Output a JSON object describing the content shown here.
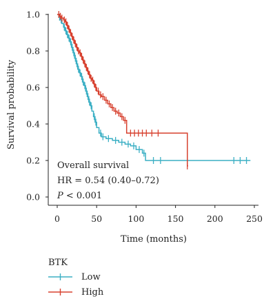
{
  "chart_data": {
    "type": "line",
    "subtype": "kaplan-meier",
    "title": "",
    "xlabel": "Time (months)",
    "ylabel": "Survival probability",
    "xlim": [
      0,
      250
    ],
    "ylim": [
      0,
      1.0
    ],
    "x_ticks": [
      "0",
      "50",
      "100",
      "150",
      "200",
      "250"
    ],
    "y_ticks": [
      "0.0",
      "0.2",
      "0.4",
      "0.6",
      "0.8",
      "1.0"
    ],
    "grid": false,
    "legend": {
      "title": "BTK",
      "position": "bottom-left"
    },
    "annotations": {
      "line1": "Overall survival",
      "line2": "HR = 0.54 (0.40–0.72)",
      "line3_p": "P",
      "line3_rest": " < 0.001"
    },
    "series": [
      {
        "name": "Low",
        "color": "#3aafc4",
        "steps": [
          [
            0,
            1.0
          ],
          [
            2,
            0.985
          ],
          [
            4,
            0.97
          ],
          [
            6,
            0.95
          ],
          [
            8,
            0.93
          ],
          [
            10,
            0.91
          ],
          [
            12,
            0.89
          ],
          [
            14,
            0.87
          ],
          [
            16,
            0.85
          ],
          [
            18,
            0.82
          ],
          [
            20,
            0.79
          ],
          [
            22,
            0.76
          ],
          [
            24,
            0.73
          ],
          [
            26,
            0.7
          ],
          [
            28,
            0.68
          ],
          [
            30,
            0.66
          ],
          [
            32,
            0.63
          ],
          [
            34,
            0.61
          ],
          [
            36,
            0.58
          ],
          [
            38,
            0.55
          ],
          [
            40,
            0.52
          ],
          [
            42,
            0.5
          ],
          [
            44,
            0.47
          ],
          [
            46,
            0.44
          ],
          [
            48,
            0.41
          ],
          [
            50,
            0.38
          ],
          [
            53,
            0.35
          ],
          [
            56,
            0.33
          ],
          [
            62,
            0.32
          ],
          [
            70,
            0.31
          ],
          [
            78,
            0.3
          ],
          [
            86,
            0.29
          ],
          [
            93,
            0.28
          ],
          [
            100,
            0.26
          ],
          [
            108,
            0.24
          ],
          [
            112,
            0.2
          ],
          [
            245,
            0.2
          ]
        ],
        "censors": [
          [
            3,
            0.985
          ],
          [
            5,
            0.97
          ],
          [
            9,
            0.93
          ],
          [
            11,
            0.91
          ],
          [
            13,
            0.89
          ],
          [
            15,
            0.87
          ],
          [
            17,
            0.85
          ],
          [
            19,
            0.82
          ],
          [
            21,
            0.79
          ],
          [
            23,
            0.76
          ],
          [
            25,
            0.73
          ],
          [
            27,
            0.7
          ],
          [
            29,
            0.68
          ],
          [
            31,
            0.66
          ],
          [
            33,
            0.63
          ],
          [
            35,
            0.61
          ],
          [
            37,
            0.58
          ],
          [
            39,
            0.55
          ],
          [
            41,
            0.52
          ],
          [
            43,
            0.5
          ],
          [
            47,
            0.44
          ],
          [
            49,
            0.41
          ],
          [
            55,
            0.35
          ],
          [
            58,
            0.33
          ],
          [
            65,
            0.32
          ],
          [
            74,
            0.31
          ],
          [
            82,
            0.3
          ],
          [
            90,
            0.29
          ],
          [
            97,
            0.28
          ],
          [
            104,
            0.26
          ],
          [
            110,
            0.24
          ],
          [
            122,
            0.2
          ],
          [
            131,
            0.2
          ],
          [
            224,
            0.2
          ],
          [
            232,
            0.2
          ],
          [
            240,
            0.2
          ]
        ]
      },
      {
        "name": "High",
        "color": "#d7402e",
        "steps": [
          [
            0,
            1.0
          ],
          [
            3,
            0.99
          ],
          [
            5,
            0.98
          ],
          [
            8,
            0.97
          ],
          [
            10,
            0.96
          ],
          [
            12,
            0.94
          ],
          [
            14,
            0.92
          ],
          [
            16,
            0.9
          ],
          [
            18,
            0.88
          ],
          [
            20,
            0.86
          ],
          [
            22,
            0.84
          ],
          [
            24,
            0.82
          ],
          [
            26,
            0.8
          ],
          [
            28,
            0.79
          ],
          [
            30,
            0.77
          ],
          [
            32,
            0.75
          ],
          [
            34,
            0.73
          ],
          [
            36,
            0.71
          ],
          [
            38,
            0.69
          ],
          [
            40,
            0.67
          ],
          [
            42,
            0.65
          ],
          [
            44,
            0.64
          ],
          [
            46,
            0.62
          ],
          [
            48,
            0.6
          ],
          [
            50,
            0.58
          ],
          [
            53,
            0.56
          ],
          [
            56,
            0.55
          ],
          [
            60,
            0.53
          ],
          [
            64,
            0.51
          ],
          [
            68,
            0.49
          ],
          [
            72,
            0.47
          ],
          [
            76,
            0.46
          ],
          [
            80,
            0.44
          ],
          [
            84,
            0.42
          ],
          [
            88,
            0.35
          ],
          [
            165,
            0.17
          ],
          [
            166,
            0.17
          ]
        ],
        "censors": [
          [
            2,
            1.0
          ],
          [
            4,
            0.99
          ],
          [
            6,
            0.98
          ],
          [
            9,
            0.97
          ],
          [
            11,
            0.96
          ],
          [
            13,
            0.94
          ],
          [
            15,
            0.92
          ],
          [
            17,
            0.9
          ],
          [
            19,
            0.88
          ],
          [
            21,
            0.86
          ],
          [
            23,
            0.84
          ],
          [
            25,
            0.82
          ],
          [
            27,
            0.8
          ],
          [
            29,
            0.79
          ],
          [
            31,
            0.77
          ],
          [
            33,
            0.75
          ],
          [
            35,
            0.73
          ],
          [
            37,
            0.71
          ],
          [
            39,
            0.69
          ],
          [
            41,
            0.67
          ],
          [
            43,
            0.65
          ],
          [
            45,
            0.64
          ],
          [
            47,
            0.62
          ],
          [
            49,
            0.6
          ],
          [
            52,
            0.58
          ],
          [
            55,
            0.56
          ],
          [
            58,
            0.55
          ],
          [
            62,
            0.53
          ],
          [
            66,
            0.51
          ],
          [
            70,
            0.49
          ],
          [
            74,
            0.47
          ],
          [
            78,
            0.46
          ],
          [
            82,
            0.44
          ],
          [
            86,
            0.42
          ],
          [
            93,
            0.35
          ],
          [
            98,
            0.35
          ],
          [
            103,
            0.35
          ],
          [
            108,
            0.35
          ],
          [
            113,
            0.35
          ],
          [
            120,
            0.35
          ],
          [
            128,
            0.35
          ],
          [
            165,
            0.17
          ]
        ]
      }
    ]
  }
}
